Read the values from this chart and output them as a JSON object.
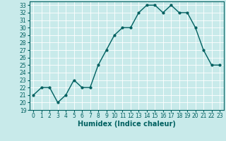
{
  "x": [
    0,
    1,
    2,
    3,
    4,
    5,
    6,
    7,
    8,
    9,
    10,
    11,
    12,
    13,
    14,
    15,
    16,
    17,
    18,
    19,
    20,
    21,
    22,
    23
  ],
  "y": [
    21,
    22,
    22,
    20,
    21,
    23,
    22,
    22,
    25,
    27,
    29,
    30,
    30,
    32,
    33,
    33,
    32,
    33,
    32,
    32,
    30,
    27,
    25,
    25
  ],
  "line_color": "#006060",
  "marker": "o",
  "marker_size": 2,
  "bg_color": "#c8eaea",
  "grid_color": "#ffffff",
  "xlabel": "Humidex (Indice chaleur)",
  "xlim": [
    -0.5,
    23.5
  ],
  "ylim": [
    19,
    33.5
  ],
  "yticks": [
    19,
    20,
    21,
    22,
    23,
    24,
    25,
    26,
    27,
    28,
    29,
    30,
    31,
    32,
    33
  ],
  "xticks": [
    0,
    1,
    2,
    3,
    4,
    5,
    6,
    7,
    8,
    9,
    10,
    11,
    12,
    13,
    14,
    15,
    16,
    17,
    18,
    19,
    20,
    21,
    22,
    23
  ],
  "tick_fontsize": 5.5,
  "xlabel_fontsize": 7,
  "line_width": 1.0
}
